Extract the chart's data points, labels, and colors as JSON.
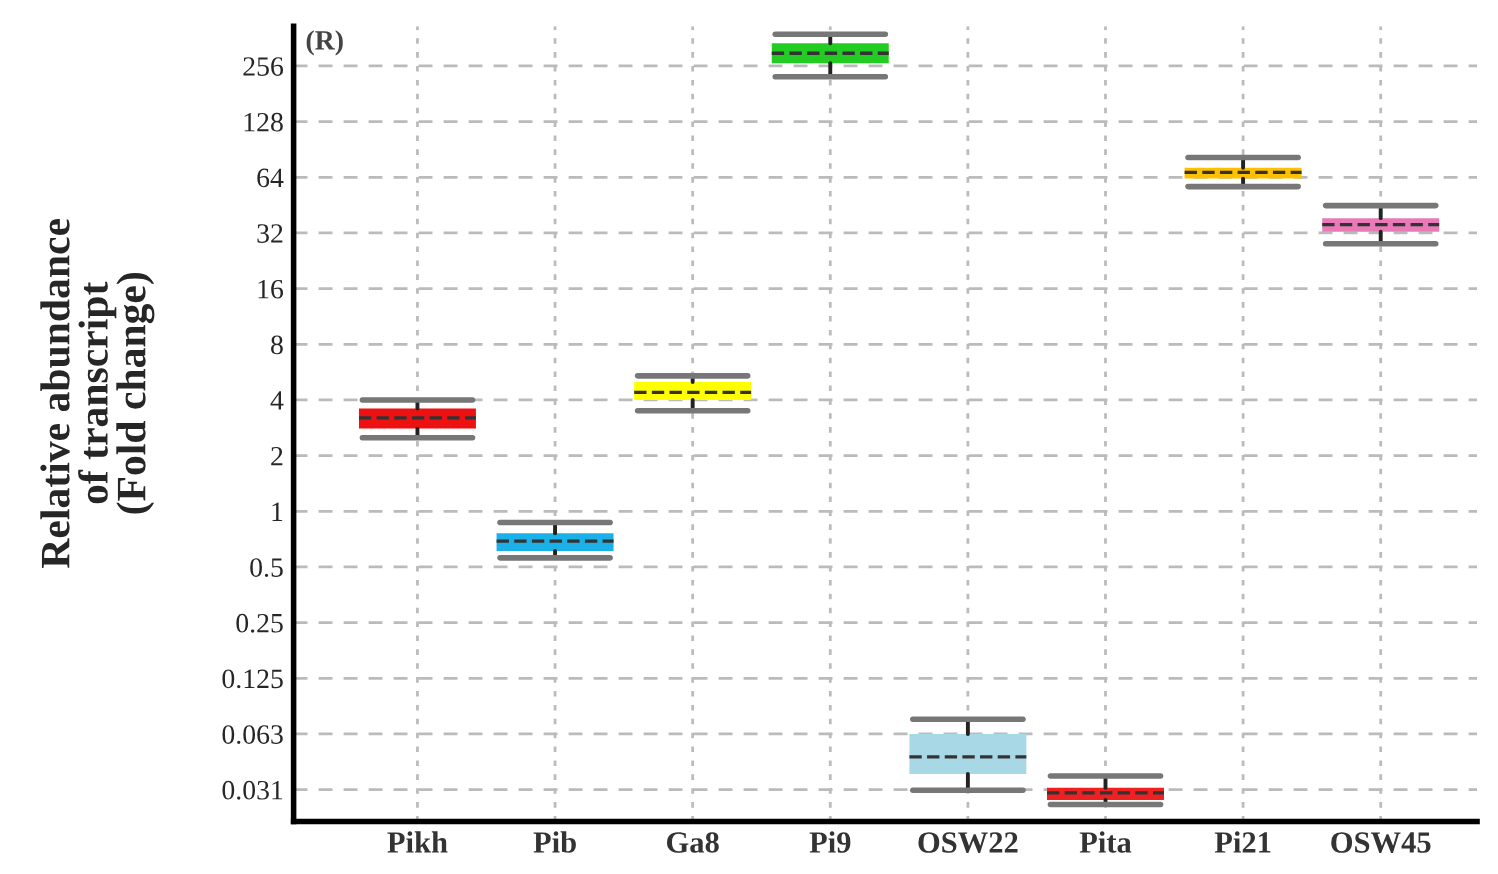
{
  "chart_data": {
    "type": "box",
    "ylabel": "Relative abundance\nof transcript\n(Fold change)",
    "annotations": [
      "(R)"
    ],
    "categories": [
      "Pikh",
      "Pib",
      "Ga8",
      "Pi9",
      "OSW22",
      "Pita",
      "Pi21",
      "OSW45"
    ],
    "colors": [
      "#ee1111",
      "#1ab0e8",
      "#ffff00",
      "#22cc22",
      "#a8d8e6",
      "#ee2020",
      "#ffc000",
      "#e87ab8"
    ],
    "boxes": [
      {
        "low": 2.5,
        "q1": 2.8,
        "median": 3.2,
        "q3": 3.6,
        "high": 4
      },
      {
        "low": 0.56,
        "q1": 0.61,
        "median": 0.69,
        "q3": 0.76,
        "high": 0.87
      },
      {
        "low": 3.5,
        "q1": 4,
        "median": 4.4,
        "q3": 5,
        "high": 5.4
      },
      {
        "low": 224,
        "q1": 265,
        "median": 300,
        "q3": 340,
        "high": 380
      },
      {
        "low": 0.031,
        "q1": 0.038,
        "median": 0.047,
        "q3": 0.0625,
        "high": 0.075
      },
      {
        "low": 0.026,
        "q1": 0.0275,
        "median": 0.03,
        "q3": 0.032,
        "high": 0.037
      },
      {
        "low": 57,
        "q1": 63,
        "median": 68,
        "q3": 72,
        "high": 82
      },
      {
        "low": 28,
        "q1": 32.5,
        "median": 35.5,
        "q3": 38.5,
        "high": 45
      }
    ],
    "log": "y",
    "ylim": [
      0.021,
      420
    ],
    "yticks": [
      {
        "value": 0.03125,
        "label": "0.031"
      },
      {
        "value": 0.0625,
        "label": "0.063"
      },
      0.125,
      0.25,
      0.5,
      1,
      2,
      4,
      8,
      16,
      32,
      64,
      128,
      256
    ],
    "grid": true
  }
}
